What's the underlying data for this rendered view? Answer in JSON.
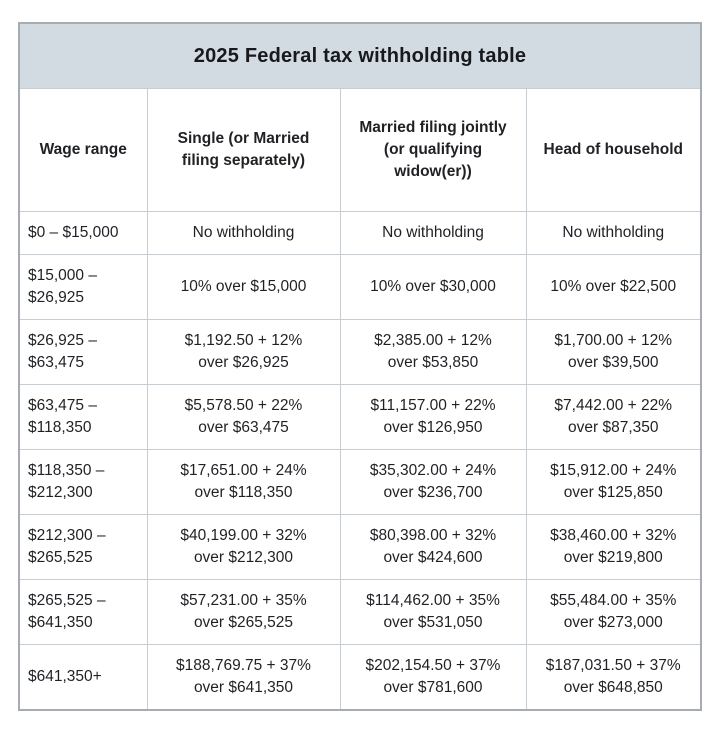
{
  "table": {
    "title": "2025 Federal tax withholding table",
    "title_bg_color": "#d2dbe2",
    "border_color": "#c8cdd2",
    "outer_border_color": "#a6acb2",
    "text_color": "#1f2124",
    "columns": [
      "Wage range",
      "Single (or Married\nfiling separately)",
      "Married filing jointly\n(or qualifying\nwidow(er))",
      "Head of household"
    ],
    "rows": [
      {
        "cells": [
          "$0 – $15,000",
          "No withholding",
          "No withholding",
          "No withholding"
        ]
      },
      {
        "cells": [
          "$15,000 –\n$26,925",
          "10% over $15,000",
          "10% over $30,000",
          "10% over $22,500"
        ]
      },
      {
        "cells": [
          "$26,925 –\n$63,475",
          "$1,192.50 + 12%\nover $26,925",
          "$2,385.00 + 12%\nover $53,850",
          "$1,700.00 + 12%\nover $39,500"
        ]
      },
      {
        "cells": [
          "$63,475 –\n$118,350",
          "$5,578.50 + 22%\nover $63,475",
          "$11,157.00 + 22%\nover $126,950",
          "$7,442.00 + 22%\nover $87,350"
        ]
      },
      {
        "cells": [
          "$118,350 –\n$212,300",
          "$17,651.00 + 24%\nover $118,350",
          "$35,302.00 + 24%\nover $236,700",
          "$15,912.00 + 24%\nover $125,850"
        ]
      },
      {
        "cells": [
          "$212,300 –\n$265,525",
          "$40,199.00 + 32%\nover $212,300",
          "$80,398.00 + 32%\nover $424,600",
          "$38,460.00 + 32%\nover $219,800"
        ]
      },
      {
        "cells": [
          "$265,525 –\n$641,350",
          "$57,231.00 + 35%\nover $265,525",
          "$114,462.00 + 35%\nover $531,050",
          "$55,484.00 + 35%\nover $273,000"
        ]
      },
      {
        "cells": [
          "$641,350+",
          "$188,769.75 + 37%\nover $641,350",
          "$202,154.50 + 37%\nover $781,600",
          "$187,031.50 + 37%\nover $648,850"
        ]
      }
    ]
  }
}
